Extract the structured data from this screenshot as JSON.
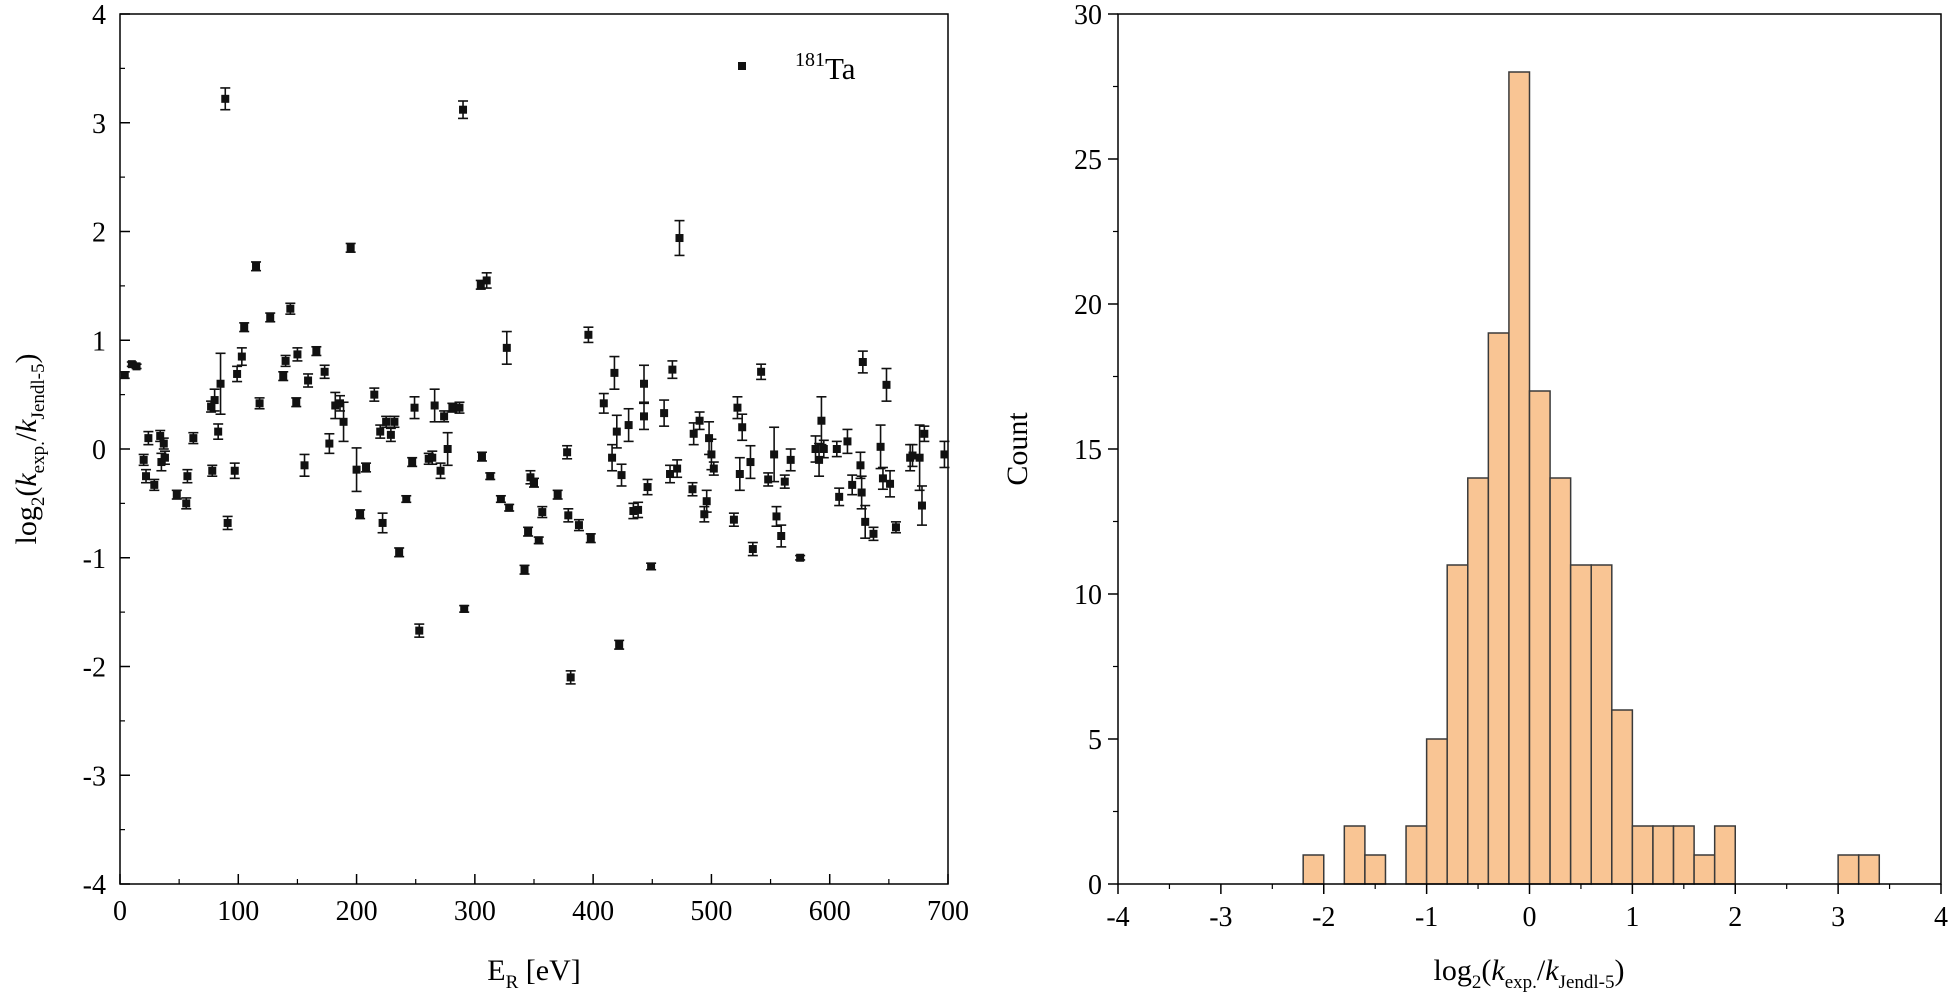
{
  "chart_data": [
    {
      "type": "scatter",
      "title": "",
      "legend": {
        "label_sup": "181",
        "label_main": "Ta",
        "position": "top-right"
      },
      "xlabel": {
        "main": "E",
        "sub": "R",
        "rest": " [eV]"
      },
      "ylabel": {
        "prefix": "log",
        "sub2": "2",
        "open": "(",
        "k1": "k",
        "s1": "exp.",
        "slash": "/",
        "k2": "k",
        "s2": "Jendl-5",
        "close": ")"
      },
      "xlim": [
        0,
        700
      ],
      "ylim": [
        -4,
        4
      ],
      "xticks": [
        0,
        100,
        200,
        300,
        400,
        500,
        600,
        700
      ],
      "yticks": [
        -4,
        -3,
        -2,
        -1,
        0,
        1,
        2,
        3,
        4
      ],
      "tick_labels_x": [
        "0",
        "100",
        "200",
        "300",
        "400",
        "500",
        "600",
        "700"
      ],
      "tick_labels_y": [
        "-4",
        "-3",
        "-2",
        "-1",
        "0",
        "1",
        "2",
        "3",
        "4"
      ],
      "marker_color": "#111111",
      "points": [
        {
          "x": 4,
          "y": 0.68,
          "e": 0.03
        },
        {
          "x": 10,
          "y": 0.78,
          "e": 0.02
        },
        {
          "x": 14,
          "y": 0.76,
          "e": 0.02
        },
        {
          "x": 20,
          "y": -0.1,
          "e": 0.05
        },
        {
          "x": 22,
          "y": -0.25,
          "e": 0.06
        },
        {
          "x": 24,
          "y": 0.1,
          "e": 0.06
        },
        {
          "x": 29,
          "y": -0.33,
          "e": 0.05
        },
        {
          "x": 34,
          "y": 0.12,
          "e": 0.05
        },
        {
          "x": 35,
          "y": -0.12,
          "e": 0.08
        },
        {
          "x": 37,
          "y": 0.05,
          "e": 0.05
        },
        {
          "x": 38,
          "y": -0.08,
          "e": 0.06
        },
        {
          "x": 48,
          "y": -0.42,
          "e": 0.04
        },
        {
          "x": 56,
          "y": -0.5,
          "e": 0.05
        },
        {
          "x": 57,
          "y": -0.25,
          "e": 0.06
        },
        {
          "x": 62,
          "y": 0.1,
          "e": 0.05
        },
        {
          "x": 77,
          "y": 0.39,
          "e": 0.05
        },
        {
          "x": 78,
          "y": -0.2,
          "e": 0.05
        },
        {
          "x": 80,
          "y": 0.45,
          "e": 0.1
        },
        {
          "x": 83,
          "y": 0.16,
          "e": 0.07
        },
        {
          "x": 85,
          "y": 0.6,
          "e": 0.28
        },
        {
          "x": 89,
          "y": 3.22,
          "e": 0.1
        },
        {
          "x": 91,
          "y": -0.68,
          "e": 0.06
        },
        {
          "x": 97,
          "y": -0.2,
          "e": 0.07
        },
        {
          "x": 99,
          "y": 0.69,
          "e": 0.07
        },
        {
          "x": 103,
          "y": 0.85,
          "e": 0.08
        },
        {
          "x": 105,
          "y": 1.12,
          "e": 0.04
        },
        {
          "x": 115,
          "y": 1.68,
          "e": 0.04
        },
        {
          "x": 118,
          "y": 0.42,
          "e": 0.05
        },
        {
          "x": 127,
          "y": 1.21,
          "e": 0.04
        },
        {
          "x": 138,
          "y": 0.67,
          "e": 0.04
        },
        {
          "x": 140,
          "y": 0.81,
          "e": 0.05
        },
        {
          "x": 144,
          "y": 1.29,
          "e": 0.05
        },
        {
          "x": 149,
          "y": 0.43,
          "e": 0.04
        },
        {
          "x": 150,
          "y": 0.87,
          "e": 0.06
        },
        {
          "x": 156,
          "y": -0.15,
          "e": 0.1
        },
        {
          "x": 159,
          "y": 0.63,
          "e": 0.06
        },
        {
          "x": 166,
          "y": 0.9,
          "e": 0.04
        },
        {
          "x": 173,
          "y": 0.71,
          "e": 0.06
        },
        {
          "x": 177,
          "y": 0.05,
          "e": 0.09
        },
        {
          "x": 182,
          "y": 0.4,
          "e": 0.12
        },
        {
          "x": 186,
          "y": 0.42,
          "e": 0.07
        },
        {
          "x": 189,
          "y": 0.25,
          "e": 0.18
        },
        {
          "x": 195,
          "y": 1.85,
          "e": 0.04
        },
        {
          "x": 200,
          "y": -0.19,
          "e": 0.2
        },
        {
          "x": 203,
          "y": -0.6,
          "e": 0.04
        },
        {
          "x": 208,
          "y": -0.17,
          "e": 0.04
        },
        {
          "x": 215,
          "y": 0.5,
          "e": 0.06
        },
        {
          "x": 220,
          "y": 0.16,
          "e": 0.06
        },
        {
          "x": 222,
          "y": -0.68,
          "e": 0.09
        },
        {
          "x": 225,
          "y": 0.25,
          "e": 0.05
        },
        {
          "x": 229,
          "y": 0.13,
          "e": 0.06
        },
        {
          "x": 232,
          "y": 0.25,
          "e": 0.05
        },
        {
          "x": 236,
          "y": -0.95,
          "e": 0.04
        },
        {
          "x": 242,
          "y": -0.46,
          "e": 0.03
        },
        {
          "x": 247,
          "y": -0.12,
          "e": 0.04
        },
        {
          "x": 249,
          "y": 0.38,
          "e": 0.1
        },
        {
          "x": 253,
          "y": -1.67,
          "e": 0.06
        },
        {
          "x": 261,
          "y": -0.09,
          "e": 0.05
        },
        {
          "x": 264,
          "y": -0.08,
          "e": 0.06
        },
        {
          "x": 266,
          "y": 0.4,
          "e": 0.15
        },
        {
          "x": 271,
          "y": -0.2,
          "e": 0.07
        },
        {
          "x": 274,
          "y": 0.3,
          "e": 0.05
        },
        {
          "x": 277,
          "y": 0.0,
          "e": 0.15
        },
        {
          "x": 281,
          "y": 0.38,
          "e": 0.04
        },
        {
          "x": 287,
          "y": 0.38,
          "e": 0.05
        },
        {
          "x": 290,
          "y": 3.12,
          "e": 0.08
        },
        {
          "x": 291,
          "y": -1.47,
          "e": 0.03
        },
        {
          "x": 305,
          "y": 1.51,
          "e": 0.04
        },
        {
          "x": 306,
          "y": -0.07,
          "e": 0.04
        },
        {
          "x": 310,
          "y": 1.55,
          "e": 0.07
        },
        {
          "x": 313,
          "y": -0.25,
          "e": 0.03
        },
        {
          "x": 322,
          "y": -0.46,
          "e": 0.03
        },
        {
          "x": 327,
          "y": 0.93,
          "e": 0.15
        },
        {
          "x": 329,
          "y": -0.54,
          "e": 0.03
        },
        {
          "x": 342,
          "y": -1.11,
          "e": 0.04
        },
        {
          "x": 345,
          "y": -0.76,
          "e": 0.04
        },
        {
          "x": 347,
          "y": -0.26,
          "e": 0.06
        },
        {
          "x": 350,
          "y": -0.31,
          "e": 0.04
        },
        {
          "x": 354,
          "y": -0.84,
          "e": 0.03
        },
        {
          "x": 357,
          "y": -0.58,
          "e": 0.05
        },
        {
          "x": 370,
          "y": -0.42,
          "e": 0.04
        },
        {
          "x": 378,
          "y": -0.03,
          "e": 0.06
        },
        {
          "x": 379,
          "y": -0.61,
          "e": 0.06
        },
        {
          "x": 381,
          "y": -2.1,
          "e": 0.06
        },
        {
          "x": 388,
          "y": -0.7,
          "e": 0.05
        },
        {
          "x": 396,
          "y": 1.05,
          "e": 0.07
        },
        {
          "x": 398,
          "y": -0.82,
          "e": 0.04
        },
        {
          "x": 409,
          "y": 0.42,
          "e": 0.09
        },
        {
          "x": 416,
          "y": -0.08,
          "e": 0.12
        },
        {
          "x": 418,
          "y": 0.7,
          "e": 0.15
        },
        {
          "x": 420,
          "y": 0.16,
          "e": 0.15
        },
        {
          "x": 422,
          "y": -1.8,
          "e": 0.04
        },
        {
          "x": 424,
          "y": -0.24,
          "e": 0.1
        },
        {
          "x": 430,
          "y": 0.22,
          "e": 0.15
        },
        {
          "x": 434,
          "y": -0.57,
          "e": 0.07
        },
        {
          "x": 438,
          "y": -0.56,
          "e": 0.07
        },
        {
          "x": 443,
          "y": 0.3,
          "e": 0.12
        },
        {
          "x": 443,
          "y": 0.6,
          "e": 0.17
        },
        {
          "x": 446,
          "y": -0.35,
          "e": 0.07
        },
        {
          "x": 449,
          "y": -1.08,
          "e": 0.03
        },
        {
          "x": 460,
          "y": 0.33,
          "e": 0.12
        },
        {
          "x": 465,
          "y": -0.23,
          "e": 0.08
        },
        {
          "x": 467,
          "y": 0.73,
          "e": 0.08
        },
        {
          "x": 471,
          "y": -0.18,
          "e": 0.08
        },
        {
          "x": 473,
          "y": 1.94,
          "e": 0.16
        },
        {
          "x": 484,
          "y": -0.37,
          "e": 0.06
        },
        {
          "x": 485,
          "y": 0.14,
          "e": 0.1
        },
        {
          "x": 490,
          "y": 0.26,
          "e": 0.08
        },
        {
          "x": 494,
          "y": -0.6,
          "e": 0.07
        },
        {
          "x": 496,
          "y": -0.48,
          "e": 0.1
        },
        {
          "x": 498,
          "y": 0.1,
          "e": 0.15
        },
        {
          "x": 500,
          "y": -0.05,
          "e": 0.14
        },
        {
          "x": 502,
          "y": -0.18,
          "e": 0.06
        },
        {
          "x": 519,
          "y": -0.65,
          "e": 0.06
        },
        {
          "x": 522,
          "y": 0.38,
          "e": 0.1
        },
        {
          "x": 524,
          "y": -0.23,
          "e": 0.15
        },
        {
          "x": 526,
          "y": 0.2,
          "e": 0.12
        },
        {
          "x": 533,
          "y": -0.12,
          "e": 0.15
        },
        {
          "x": 535,
          "y": -0.92,
          "e": 0.06
        },
        {
          "x": 542,
          "y": 0.71,
          "e": 0.07
        },
        {
          "x": 548,
          "y": -0.28,
          "e": 0.06
        },
        {
          "x": 553,
          "y": -0.05,
          "e": 0.25
        },
        {
          "x": 555,
          "y": -0.62,
          "e": 0.09
        },
        {
          "x": 559,
          "y": -0.8,
          "e": 0.1
        },
        {
          "x": 562,
          "y": -0.3,
          "e": 0.06
        },
        {
          "x": 567,
          "y": -0.1,
          "e": 0.1
        },
        {
          "x": 575,
          "y": -1.0,
          "e": 0.02
        },
        {
          "x": 588,
          "y": 0.0,
          "e": 0.12
        },
        {
          "x": 591,
          "y": -0.1,
          "e": 0.15
        },
        {
          "x": 593,
          "y": 0.26,
          "e": 0.22
        },
        {
          "x": 595,
          "y": 0.0,
          "e": 0.08
        },
        {
          "x": 606,
          "y": 0.0,
          "e": 0.07
        },
        {
          "x": 608,
          "y": -0.44,
          "e": 0.08
        },
        {
          "x": 615,
          "y": 0.07,
          "e": 0.11
        },
        {
          "x": 619,
          "y": -0.33,
          "e": 0.09
        },
        {
          "x": 626,
          "y": -0.15,
          "e": 0.12
        },
        {
          "x": 627,
          "y": -0.4,
          "e": 0.15
        },
        {
          "x": 628,
          "y": 0.8,
          "e": 0.1
        },
        {
          "x": 630,
          "y": -0.67,
          "e": 0.15
        },
        {
          "x": 637,
          "y": -0.78,
          "e": 0.06
        },
        {
          "x": 643,
          "y": 0.02,
          "e": 0.2
        },
        {
          "x": 645,
          "y": -0.27,
          "e": 0.1
        },
        {
          "x": 648,
          "y": 0.59,
          "e": 0.15
        },
        {
          "x": 651,
          "y": -0.32,
          "e": 0.12
        },
        {
          "x": 656,
          "y": -0.72,
          "e": 0.05
        },
        {
          "x": 668,
          "y": -0.08,
          "e": 0.12
        },
        {
          "x": 670,
          "y": -0.06,
          "e": 0.1
        },
        {
          "x": 676,
          "y": -0.08,
          "e": 0.3
        },
        {
          "x": 678,
          "y": -0.52,
          "e": 0.18
        },
        {
          "x": 680,
          "y": 0.14,
          "e": 0.07
        },
        {
          "x": 697,
          "y": -0.05,
          "e": 0.12
        }
      ]
    },
    {
      "type": "bar",
      "title": "",
      "xlabel": {
        "prefix": "log",
        "sub2": "2",
        "open": "(",
        "k1": "k",
        "s1": "exp.",
        "slash": "/",
        "k2": "k",
        "s2": "Jendl-5",
        "close": ")"
      },
      "ylabel": "Count",
      "xlim": [
        -4,
        4
      ],
      "ylim": [
        0,
        30
      ],
      "xticks": [
        -4,
        -3,
        -2,
        -1,
        0,
        1,
        2,
        3,
        4
      ],
      "yticks": [
        0,
        5,
        10,
        15,
        20,
        25,
        30
      ],
      "tick_labels_x": [
        "-4",
        "-3",
        "-2",
        "-1",
        "0",
        "1",
        "2",
        "3",
        "4"
      ],
      "tick_labels_y": [
        "0",
        "5",
        "10",
        "15",
        "20",
        "25",
        "30"
      ],
      "bar_color": "#f9c594",
      "bar_edge": "#3a3a3a",
      "bins": [
        {
          "x0": -2.2,
          "x1": -2.0,
          "count": 1
        },
        {
          "x0": -2.0,
          "x1": -1.8,
          "count": 0
        },
        {
          "x0": -1.8,
          "x1": -1.6,
          "count": 2
        },
        {
          "x0": -1.6,
          "x1": -1.4,
          "count": 1
        },
        {
          "x0": -1.4,
          "x1": -1.2,
          "count": 0
        },
        {
          "x0": -1.2,
          "x1": -1.0,
          "count": 2
        },
        {
          "x0": -1.0,
          "x1": -0.8,
          "count": 5
        },
        {
          "x0": -0.8,
          "x1": -0.6,
          "count": 11
        },
        {
          "x0": -0.6,
          "x1": -0.4,
          "count": 14
        },
        {
          "x0": -0.4,
          "x1": -0.2,
          "count": 19
        },
        {
          "x0": -0.2,
          "x1": 0.0,
          "count": 28
        },
        {
          "x0": 0.0,
          "x1": 0.2,
          "count": 17
        },
        {
          "x0": 0.2,
          "x1": 0.4,
          "count": 14
        },
        {
          "x0": 0.4,
          "x1": 0.6,
          "count": 11
        },
        {
          "x0": 0.6,
          "x1": 0.8,
          "count": 11
        },
        {
          "x0": 0.8,
          "x1": 1.0,
          "count": 6
        },
        {
          "x0": 1.0,
          "x1": 1.2,
          "count": 2
        },
        {
          "x0": 1.2,
          "x1": 1.4,
          "count": 2
        },
        {
          "x0": 1.4,
          "x1": 1.6,
          "count": 2
        },
        {
          "x0": 1.6,
          "x1": 1.8,
          "count": 1
        },
        {
          "x0": 1.8,
          "x1": 2.0,
          "count": 2
        },
        {
          "x0": 3.0,
          "x1": 3.2,
          "count": 1
        },
        {
          "x0": 3.2,
          "x1": 3.4,
          "count": 1
        }
      ]
    }
  ]
}
